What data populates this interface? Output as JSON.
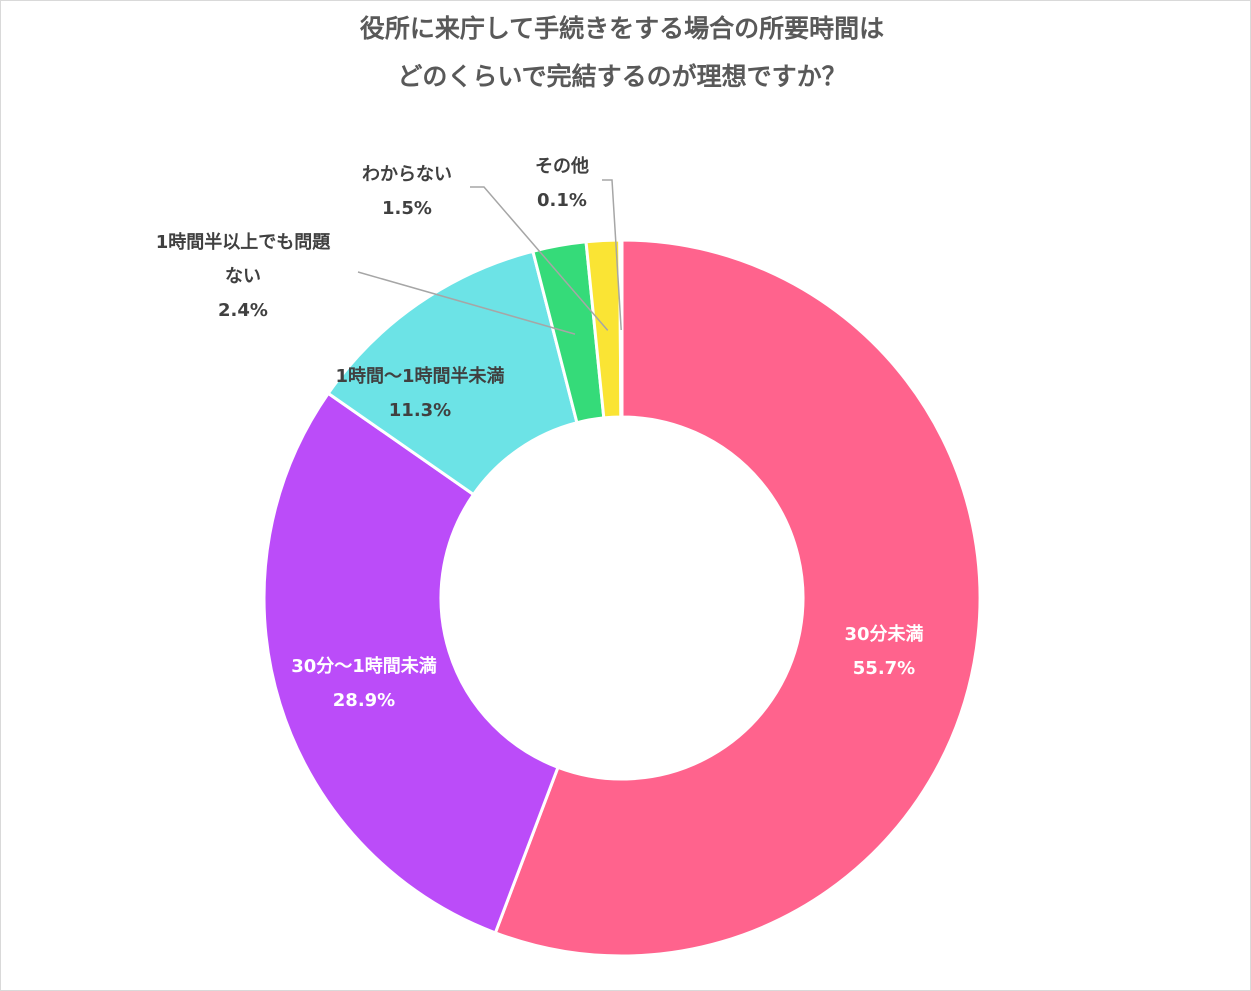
{
  "chart_data": {
    "type": "pie",
    "subtype": "donut",
    "title_lines": [
      "役所に来庁して手続きをする場合の所要時間は",
      "どのくらいで完結するのが理想ですか？"
    ],
    "categories": [
      "30分未満",
      "30分～1時間未満",
      "1時間～1時間半未満",
      "1時間半以上でも問題ない",
      "わからない",
      "その他"
    ],
    "values": [
      55.7,
      28.9,
      11.3,
      2.4,
      1.5,
      0.1
    ],
    "value_labels": [
      "55.7%",
      "28.9%",
      "11.3%",
      "2.4%",
      "1.5%",
      "0.1%"
    ],
    "label_lines": [
      [
        "30分未満"
      ],
      [
        "30分～1時間未満"
      ],
      [
        "1時間～1時間半未満"
      ],
      [
        "1時間半以上でも問題",
        "ない"
      ],
      [
        "わからない"
      ],
      [
        "その他"
      ]
    ],
    "colors": [
      "#ff638d",
      "#bb4cf9",
      "#6ce3e6",
      "#35db79",
      "#fae434",
      "#7aa8f0"
    ],
    "start_angle_deg": 0,
    "direction": "clockwise",
    "legend": "none"
  }
}
